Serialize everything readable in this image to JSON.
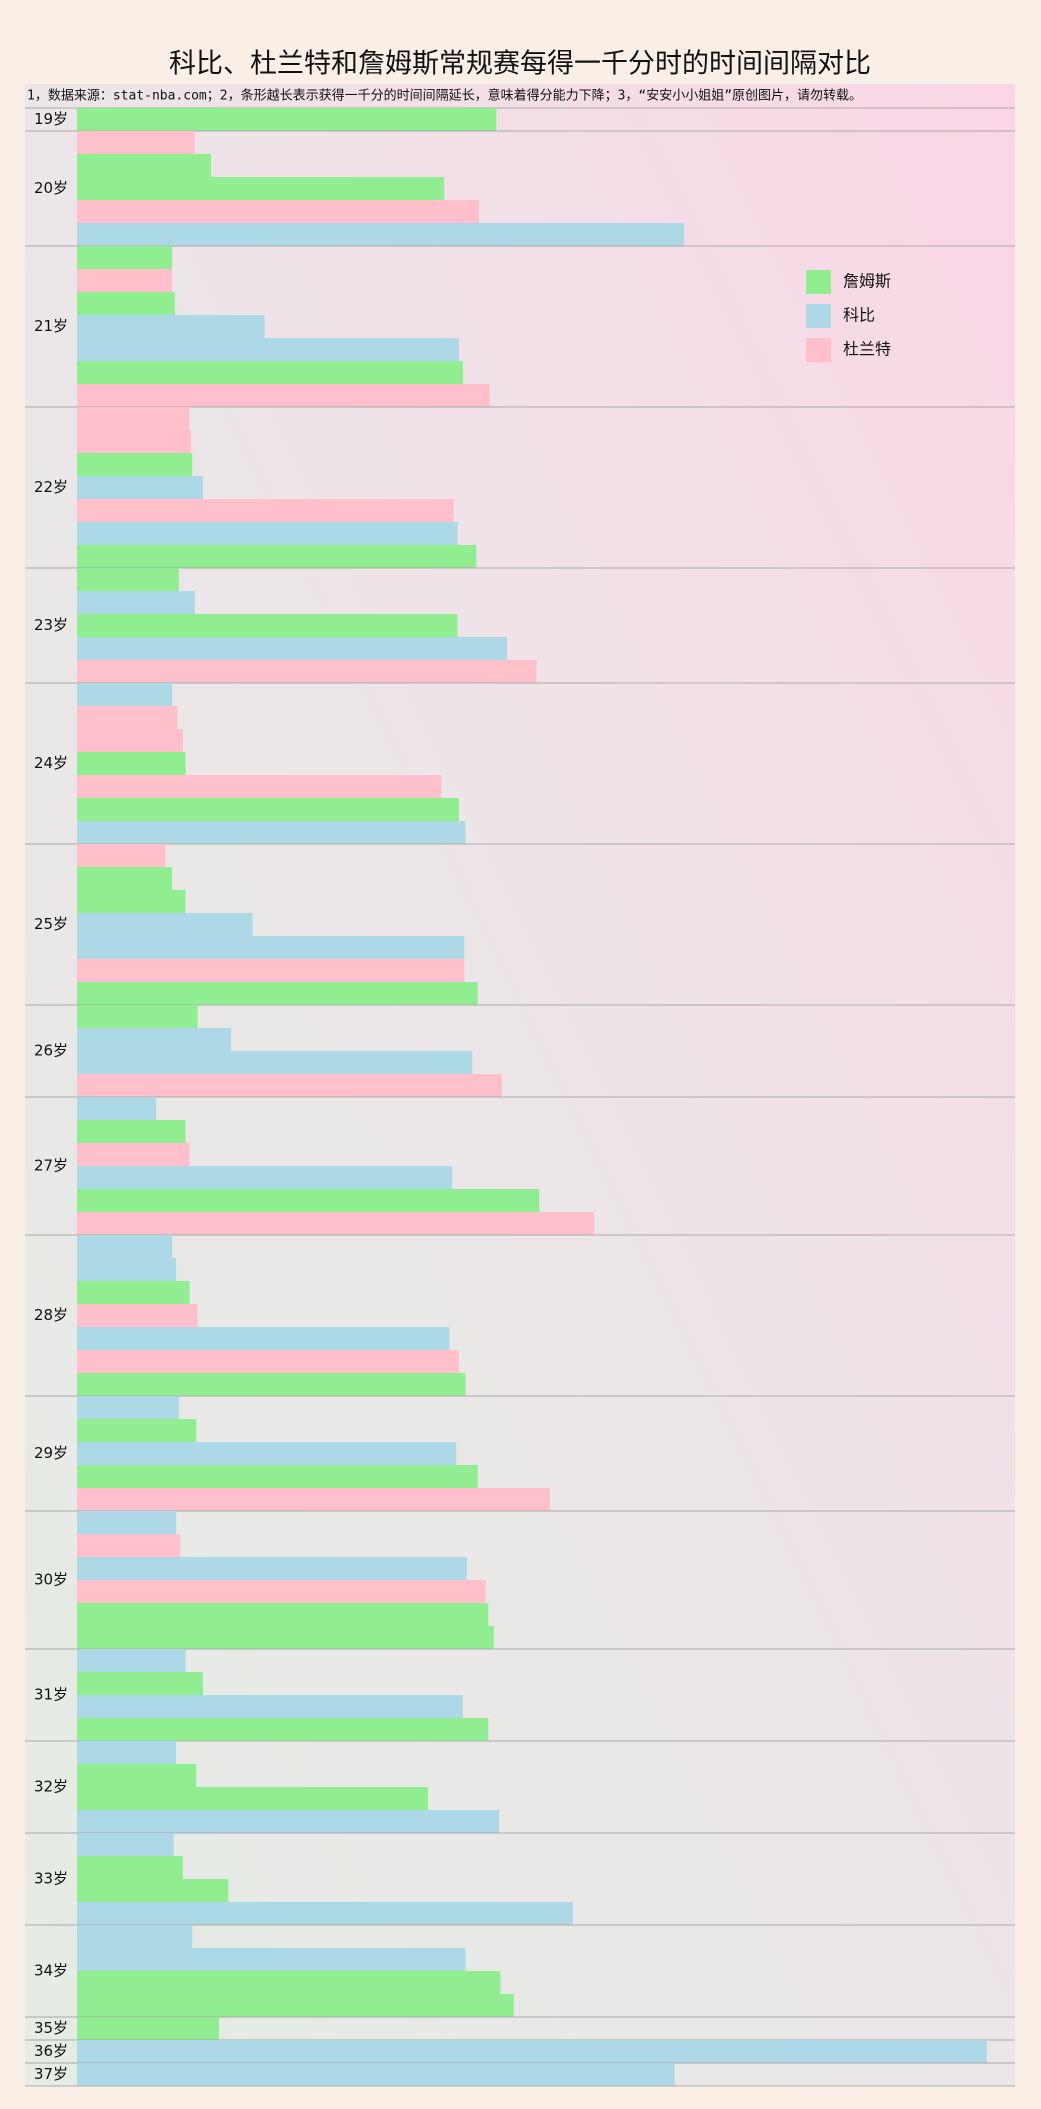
{
  "chart_data": {
    "type": "bar",
    "orientation": "horizontal",
    "title": "科比、杜兰特和詹姆斯常规赛每得一千分时的时间间隔对比",
    "subtitle": "1，数据来源：stat-nba.com；2，条形越长表示获得一千分的时间间隔延长，意味着得分能力下降；3，“安安小小姐姐”原创图片，请勿转载。",
    "series": [
      {
        "name": "詹姆斯",
        "color": "#90ee90"
      },
      {
        "name": "科比",
        "color": "#add8e6"
      },
      {
        "name": "杜兰特",
        "color": "#ffc0cb"
      }
    ],
    "xlim": [
      0,
      700
    ],
    "groups": [
      {
        "label": "19岁",
        "bars": [
          {
            "series": 0,
            "value": 313
          }
        ]
      },
      {
        "label": "20岁",
        "bars": [
          {
            "series": 2,
            "value": 88
          },
          {
            "series": 0,
            "value": 100
          },
          {
            "series": 0,
            "value": 274
          },
          {
            "series": 2,
            "value": 300
          },
          {
            "series": 1,
            "value": 453
          }
        ]
      },
      {
        "label": "21岁",
        "bars": [
          {
            "series": 0,
            "value": 71
          },
          {
            "series": 2,
            "value": 71
          },
          {
            "series": 0,
            "value": 73
          },
          {
            "series": 1,
            "value": 140
          },
          {
            "series": 1,
            "value": 285
          },
          {
            "series": 0,
            "value": 288
          },
          {
            "series": 2,
            "value": 308
          }
        ]
      },
      {
        "label": "22岁",
        "bars": [
          {
            "series": 2,
            "value": 84
          },
          {
            "series": 2,
            "value": 85
          },
          {
            "series": 0,
            "value": 86
          },
          {
            "series": 1,
            "value": 94
          },
          {
            "series": 2,
            "value": 281
          },
          {
            "series": 1,
            "value": 284
          },
          {
            "series": 0,
            "value": 298
          }
        ]
      },
      {
        "label": "23岁",
        "bars": [
          {
            "series": 0,
            "value": 76
          },
          {
            "series": 1,
            "value": 88
          },
          {
            "series": 0,
            "value": 284
          },
          {
            "series": 1,
            "value": 321
          },
          {
            "series": 2,
            "value": 343
          }
        ]
      },
      {
        "label": "24岁",
        "bars": [
          {
            "series": 1,
            "value": 71
          },
          {
            "series": 2,
            "value": 75
          },
          {
            "series": 2,
            "value": 79
          },
          {
            "series": 0,
            "value": 81
          },
          {
            "series": 2,
            "value": 272
          },
          {
            "series": 0,
            "value": 285
          },
          {
            "series": 1,
            "value": 290
          }
        ]
      },
      {
        "label": "25岁",
        "bars": [
          {
            "series": 2,
            "value": 66
          },
          {
            "series": 0,
            "value": 71
          },
          {
            "series": 0,
            "value": 81
          },
          {
            "series": 1,
            "value": 131
          },
          {
            "series": 1,
            "value": 289
          },
          {
            "series": 2,
            "value": 289
          },
          {
            "series": 0,
            "value": 299
          }
        ]
      },
      {
        "label": "26岁",
        "bars": [
          {
            "series": 0,
            "value": 90
          },
          {
            "series": 1,
            "value": 115
          },
          {
            "series": 1,
            "value": 295
          },
          {
            "series": 2,
            "value": 317
          }
        ]
      },
      {
        "label": "27岁",
        "bars": [
          {
            "series": 1,
            "value": 59
          },
          {
            "series": 0,
            "value": 81
          },
          {
            "series": 2,
            "value": 84
          },
          {
            "series": 1,
            "value": 280
          },
          {
            "series": 0,
            "value": 345
          },
          {
            "series": 2,
            "value": 386
          }
        ]
      },
      {
        "label": "28岁",
        "bars": [
          {
            "series": 1,
            "value": 71
          },
          {
            "series": 1,
            "value": 74
          },
          {
            "series": 0,
            "value": 84
          },
          {
            "series": 2,
            "value": 90
          },
          {
            "series": 1,
            "value": 278
          },
          {
            "series": 2,
            "value": 285
          },
          {
            "series": 0,
            "value": 290
          }
        ]
      },
      {
        "label": "29岁",
        "bars": [
          {
            "series": 1,
            "value": 76
          },
          {
            "series": 0,
            "value": 89
          },
          {
            "series": 1,
            "value": 283
          },
          {
            "series": 0,
            "value": 299
          },
          {
            "series": 2,
            "value": 353
          }
        ]
      },
      {
        "label": "30岁",
        "bars": [
          {
            "series": 1,
            "value": 74
          },
          {
            "series": 2,
            "value": 77
          },
          {
            "series": 1,
            "value": 291
          },
          {
            "series": 2,
            "value": 305
          },
          {
            "series": 0,
            "value": 307
          },
          {
            "series": 0,
            "value": 311
          }
        ]
      },
      {
        "label": "31岁",
        "bars": [
          {
            "series": 1,
            "value": 81
          },
          {
            "series": 0,
            "value": 94
          },
          {
            "series": 1,
            "value": 288
          },
          {
            "series": 0,
            "value": 307
          }
        ]
      },
      {
        "label": "32岁",
        "bars": [
          {
            "series": 1,
            "value": 74
          },
          {
            "series": 0,
            "value": 89
          },
          {
            "series": 0,
            "value": 262
          },
          {
            "series": 1,
            "value": 315
          }
        ]
      },
      {
        "label": "33岁",
        "bars": [
          {
            "series": 1,
            "value": 72
          },
          {
            "series": 0,
            "value": 79
          },
          {
            "series": 0,
            "value": 113
          },
          {
            "series": 1,
            "value": 370
          }
        ]
      },
      {
        "label": "34岁",
        "bars": [
          {
            "series": 1,
            "value": 86
          },
          {
            "series": 1,
            "value": 290
          },
          {
            "series": 0,
            "value": 316
          },
          {
            "series": 0,
            "value": 326
          }
        ]
      },
      {
        "label": "35岁",
        "bars": [
          {
            "series": 0,
            "value": 106
          }
        ]
      },
      {
        "label": "36岁",
        "bars": [
          {
            "series": 1,
            "value": 679
          }
        ]
      },
      {
        "label": "37岁",
        "bars": [
          {
            "series": 1,
            "value": 446
          }
        ]
      }
    ]
  }
}
